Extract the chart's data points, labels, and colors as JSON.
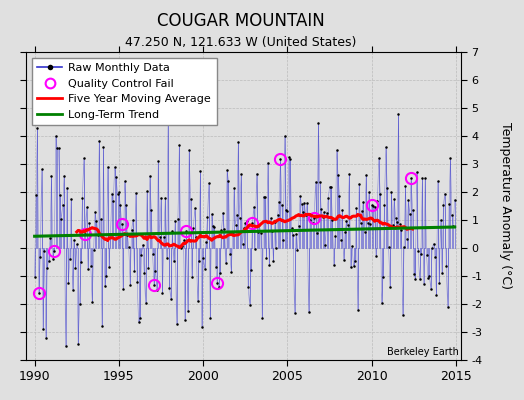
{
  "title": "COUGAR MOUNTAIN",
  "subtitle": "47.250 N, 121.633 W (United States)",
  "xlabel_years": [
    1990,
    1995,
    2000,
    2005,
    2010,
    2015
  ],
  "ylim": [
    -4,
    7
  ],
  "yticks": [
    -4,
    -3,
    -2,
    -1,
    0,
    1,
    2,
    3,
    4,
    5,
    6,
    7
  ],
  "ylabel": "Temperature Anomaly (°C)",
  "watermark": "Berkeley Earth",
  "raw_line_color": "#3333cc",
  "raw_marker_color": "black",
  "qc_fail_color": "magenta",
  "moving_avg_color": "red",
  "trend_color": "green",
  "background_color": "#e0e0e0",
  "grid_color": "#bbbbbb",
  "title_fontsize": 12,
  "subtitle_fontsize": 9,
  "legend_fontsize": 8
}
